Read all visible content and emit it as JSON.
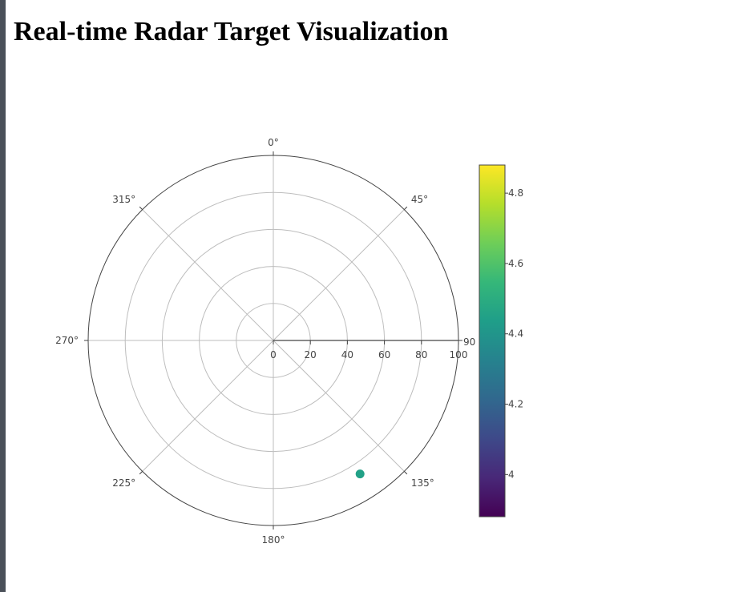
{
  "page": {
    "title": "Real-time Radar Target Visualization"
  },
  "chart_data": {
    "type": "scatter",
    "subtype": "polar",
    "title": "",
    "radial_axis": {
      "range": [
        0,
        100
      ],
      "ticks": [
        0,
        20,
        40,
        60,
        80,
        100
      ],
      "tick_labels": [
        "0",
        "20",
        "40",
        "60",
        "80",
        "100"
      ],
      "angle_deg": 90,
      "angle_label": "90"
    },
    "angular_axis": {
      "rotation": 90,
      "direction": "clockwise",
      "ticks": [
        0,
        45,
        90,
        135,
        180,
        225,
        270,
        315
      ],
      "tick_labels": [
        "0°",
        "45°",
        "90°",
        "135°",
        "180°",
        "225°",
        "270°",
        "315°"
      ],
      "label_angles": [
        0,
        45,
        135,
        180,
        225,
        270,
        315
      ]
    },
    "grid": true,
    "points": [
      {
        "r": 86,
        "theta": 147,
        "value": 4.45
      }
    ],
    "colorbar": {
      "colorscale": "Viridis",
      "range": [
        3.88,
        4.88
      ],
      "ticks": [
        4,
        4.2,
        4.4,
        4.6,
        4.8
      ],
      "tick_labels": [
        "4",
        "4.2",
        "4.4",
        "4.6",
        "4.8"
      ]
    },
    "colors": {
      "viridis": [
        "#440154",
        "#482878",
        "#3e4989",
        "#31688e",
        "#26828e",
        "#1f9e89",
        "#35b779",
        "#6ece58",
        "#b5de2b",
        "#fde725"
      ],
      "grid": "#bdbdbd",
      "outer_ring": "#444444",
      "radial_axis_line": "#444444"
    }
  }
}
